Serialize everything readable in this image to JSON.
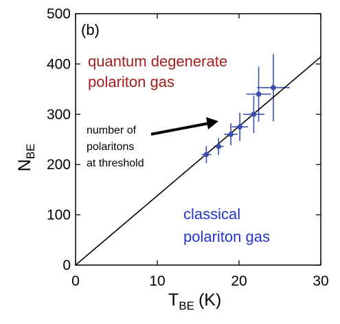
{
  "chart_data": {
    "type": "scatter",
    "panel_label": "(b)",
    "xlabel": {
      "main": "T",
      "sub": "BE",
      "unit": "(K)"
    },
    "ylabel": {
      "main": "N",
      "sub": "BE"
    },
    "xlim": [
      0,
      30
    ],
    "ylim": [
      0,
      500
    ],
    "x_ticks": [
      0,
      10,
      20,
      30
    ],
    "y_ticks": [
      0,
      100,
      200,
      300,
      400,
      500
    ],
    "grid": false,
    "points": [
      {
        "x": 16.0,
        "y": 220,
        "xerr": 0.6,
        "yerr": 17
      },
      {
        "x": 17.5,
        "y": 236,
        "xerr": 0.6,
        "yerr": 17
      },
      {
        "x": 19.0,
        "y": 260,
        "xerr": 0.8,
        "yerr": 22
      },
      {
        "x": 20.1,
        "y": 275,
        "xerr": 1.0,
        "yerr": 28
      },
      {
        "x": 21.8,
        "y": 300,
        "xerr": 1.3,
        "yerr": 37
      },
      {
        "x": 22.4,
        "y": 340,
        "xerr": 1.5,
        "yerr": 55
      },
      {
        "x": 24.2,
        "y": 353,
        "xerr": 2.0,
        "yerr": 67
      }
    ],
    "reference_line": {
      "x": [
        0,
        30
      ],
      "y": [
        0,
        414
      ]
    },
    "colors": {
      "points": "#3a4fad",
      "upper_region": "#a51d1d",
      "lower_region": "#2234c9",
      "line": "#000000"
    },
    "annotations": {
      "upper_region": [
        "quantum degenerate",
        "polariton gas"
      ],
      "lower_region": [
        "classical",
        "polariton gas"
      ],
      "arrow_note": [
        "number of",
        "polaritons",
        "at threshold"
      ]
    }
  }
}
